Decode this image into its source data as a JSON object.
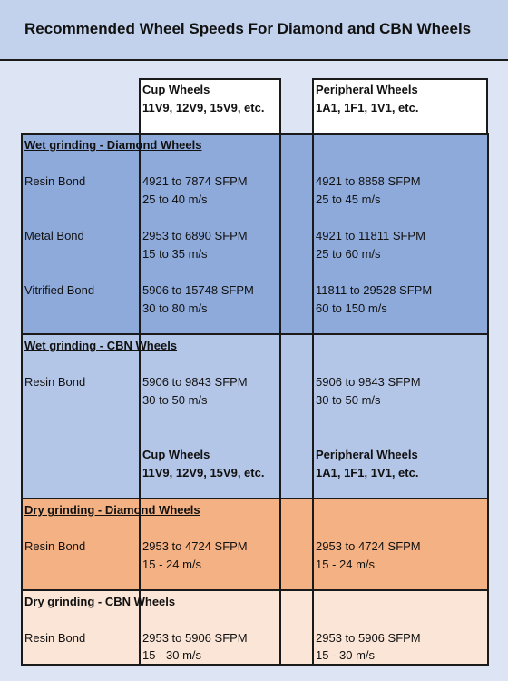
{
  "title": "Recommended Wheel Speeds For Diamond and CBN Wheels",
  "col_headers": {
    "cup": {
      "line1": "Cup Wheels",
      "line2": "11V9, 12V9, 15V9, etc."
    },
    "peripheral": {
      "line1": "Peripheral Wheels",
      "line2": "1A1, 1F1, 1V1, etc."
    }
  },
  "sections": {
    "wet_diamond": {
      "heading": "Wet grinding - Diamond Wheels",
      "rows": [
        {
          "label": "Resin Bond",
          "cup1": "4921 to 7874 SFPM",
          "cup2": "25 to 40 m/s",
          "per1": "4921 to 8858 SFPM",
          "per2": "25 to 45 m/s"
        },
        {
          "label": "Metal Bond",
          "cup1": "2953 to 6890 SFPM",
          "cup2": "15 to 35 m/s",
          "per1": "4921 to 11811 SFPM",
          "per2": "25 to 60 m/s"
        },
        {
          "label": "Vitrified Bond",
          "cup1": "5906 to 15748 SFPM",
          "cup2": "30 to 80 m/s",
          "per1": "11811 to 29528 SFPM",
          "per2": "60 to 150 m/s"
        }
      ]
    },
    "wet_cbn": {
      "heading": "Wet grinding - CBN Wheels",
      "rows": [
        {
          "label": "Resin Bond",
          "cup1": "5906 to 9843 SFPM",
          "cup2": "30 to 50 m/s",
          "per1": "5906 to 9843 SFPM",
          "per2": "30 to 50 m/s"
        }
      ],
      "sub_headers": {
        "cup": {
          "line1": "Cup Wheels",
          "line2": "11V9, 12V9, 15V9, etc."
        },
        "peripheral": {
          "line1": "Peripheral Wheels",
          "line2": "1A1, 1F1, 1V1, etc."
        }
      }
    },
    "dry_diamond": {
      "heading": "Dry grinding - Diamond Wheels",
      "rows": [
        {
          "label": "Resin Bond",
          "cup1": "2953 to 4724 SFPM",
          "cup2": "15 - 24 m/s",
          "per1": "2953 to 4724 SFPM",
          "per2": "15 - 24 m/s"
        }
      ]
    },
    "dry_cbn": {
      "heading": "Dry grinding - CBN Wheels",
      "rows": [
        {
          "label": "Resin Bond",
          "cup1": "2953 to 5906 SFPM",
          "cup2": "15 - 30 m/s",
          "per1": "2953 to 5906 SFPM",
          "per2": "15 - 30 m/s"
        }
      ]
    }
  },
  "colors": {
    "page_bg": "#dde5f4",
    "header_bg": "#c2d2ec",
    "wet_diamond_bg": "#8eaadb",
    "wet_cbn_bg": "#b4c6e7",
    "dry_diamond_bg": "#f4b183",
    "dry_cbn_bg": "#fbe5d6",
    "border": "#1a1a1a"
  }
}
